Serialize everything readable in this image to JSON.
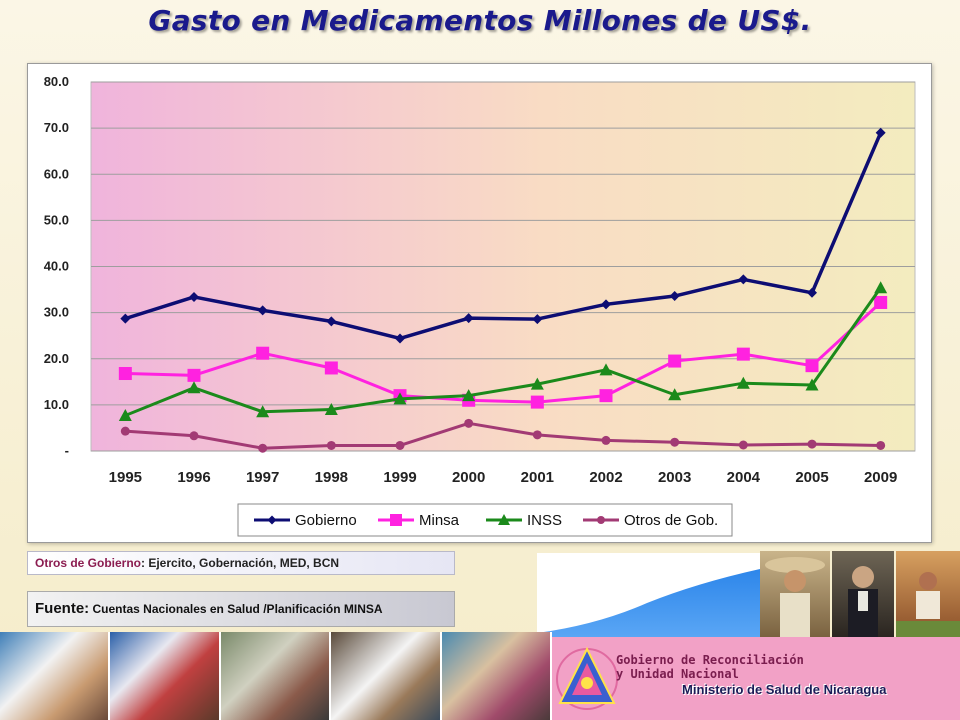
{
  "title": "Gasto en Medicamentos Millones de US$.",
  "chart_data": {
    "type": "line",
    "title": "",
    "xlabel": "",
    "ylabel": "",
    "categories": [
      "1995",
      "1996",
      "1997",
      "1998",
      "1999",
      "2000",
      "2001",
      "2002",
      "2003",
      "2004",
      "2005",
      "2009"
    ],
    "ylim": [
      0,
      80
    ],
    "y_ticks": [
      0,
      10,
      20,
      30,
      40,
      50,
      60,
      70,
      80
    ],
    "y_tick_labels": [
      "-",
      "10.0",
      "20.0",
      "30.0",
      "40.0",
      "50.0",
      "60.0",
      "70.0",
      "80.0"
    ],
    "grid": true,
    "legend_position": "bottom",
    "series": [
      {
        "name": "Gobierno",
        "color": "#0d0d73",
        "marker": "diamond",
        "values": [
          28.7,
          33.4,
          30.5,
          28.1,
          24.4,
          28.8,
          28.6,
          31.8,
          33.6,
          37.2,
          34.3,
          69.0
        ]
      },
      {
        "name": "Minsa",
        "color": "#ff22e0",
        "marker": "square",
        "values": [
          16.8,
          16.4,
          21.2,
          18.0,
          12.0,
          11.0,
          10.6,
          12.0,
          19.5,
          21.0,
          18.5,
          32.2
        ]
      },
      {
        "name": "INSS",
        "color": "#1b8a1b",
        "marker": "triangle",
        "values": [
          7.7,
          13.7,
          8.5,
          9.0,
          11.3,
          12.0,
          14.5,
          17.6,
          12.2,
          14.7,
          14.3,
          35.4
        ]
      },
      {
        "name": "Otros de Gob.",
        "color": "#a23a74",
        "marker": "circle",
        "values": [
          4.3,
          3.3,
          0.6,
          1.2,
          1.2,
          6.0,
          3.5,
          2.3,
          1.9,
          1.3,
          1.5,
          1.2
        ]
      }
    ]
  },
  "note": {
    "key": "Otros de Gobierno",
    "text": ": Ejercito, Gobernación, MED, BCN"
  },
  "source": {
    "key": "Fuente:",
    "text": " Cuentas Nacionales en Salud /Planificación MINSA"
  },
  "footer": {
    "gov_line1": "Gobierno de Reconciliación",
    "gov_line2": "y Unidad Nacional",
    "ministry": "Ministerio de Salud de Nicaragua"
  },
  "colors": {
    "title": "#1a1a8c",
    "banner": "#f2a1c6"
  }
}
